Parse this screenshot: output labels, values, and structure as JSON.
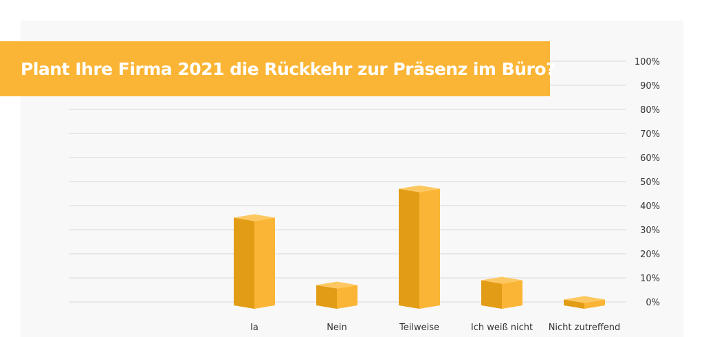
{
  "chart_data": {
    "type": "bar",
    "title": "Plant Ihre Firma 2021 die Rückkehr zur Präsenz im Büro?",
    "categories": [
      "Ja",
      "Nein",
      "Teilweise",
      "Ich weiß nicht",
      "Nicht zutreffend"
    ],
    "values": [
      35,
      7,
      47,
      9,
      1
    ],
    "y_ticks": [
      "0%",
      "10%",
      "20%",
      "30%",
      "40%",
      "50%",
      "60%",
      "70%",
      "80%",
      "90%",
      "100%"
    ],
    "ylim": [
      0,
      100
    ],
    "y_axis_side": "right",
    "grid": true,
    "colors": {
      "bar_front": "#e39c15",
      "bar_side": "#fbb536",
      "bar_top": "#fdc861",
      "banner": "#fbb536",
      "gridline": "#d9d9d9"
    }
  }
}
